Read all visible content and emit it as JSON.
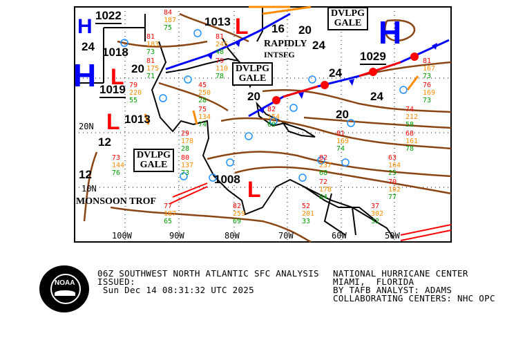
{
  "map": {
    "title": "06Z SOUTHWEST NORTH ATLANTIC SFC ANALYSIS",
    "longitude_labels": [
      "100W",
      "90W",
      "80W",
      "70W",
      "60W",
      "50W"
    ],
    "latitude_labels": [
      "20N",
      "10N"
    ],
    "highs": [
      {
        "symbol": "H",
        "pressure": "1029"
      },
      {
        "symbol": "H",
        "pressure": "1019"
      },
      {
        "symbol": "H",
        "pressure": "1022"
      }
    ],
    "lows": [
      {
        "symbol": "L",
        "pressure": "1018"
      },
      {
        "symbol": "L",
        "pressure": "1013"
      },
      {
        "symbol": "L",
        "pressure": "1013"
      },
      {
        "symbol": "L",
        "pressure": "1008"
      }
    ],
    "isobar_labels": [
      "24",
      "20",
      "12",
      "12",
      "16",
      "20",
      "24",
      "24",
      "20",
      "24",
      "20"
    ],
    "gale_boxes": [
      {
        "line1": "DVLPG",
        "line2": "GALE"
      },
      {
        "line1": "DVLPG",
        "line2": "GALE"
      },
      {
        "line1": "DVLPG",
        "line2": "GALE"
      }
    ],
    "annotations": [
      "RAPIDLY",
      "INTSFG",
      "MONSOON TROF"
    ],
    "station_values": {
      "red": [
        "29",
        "37",
        "45",
        "63",
        "52",
        "81",
        "79",
        "74",
        "82",
        "82",
        "81",
        "81",
        "77",
        "82",
        "80",
        "75",
        "73",
        "70",
        "79",
        "68",
        "72",
        "81",
        "76",
        "81",
        "84"
      ],
      "orange": [
        "178",
        "302",
        "250",
        "164",
        "201",
        "245",
        "220",
        "212",
        "237",
        "259",
        "183",
        "167",
        "187",
        "154",
        "137",
        "134",
        "144",
        "102",
        "110",
        "161",
        "178",
        "175",
        "169",
        "169",
        "187"
      ],
      "green": [
        "28",
        "32",
        "28",
        "25",
        "33",
        "48",
        "55",
        "58",
        "68",
        "69",
        "73",
        "73",
        "65",
        "60",
        "73",
        "74",
        "76",
        "77",
        "78",
        "78",
        "84",
        "71",
        "73",
        "74",
        "75"
      ]
    },
    "colors": {
      "isobar": "#8B4513",
      "high": "#0000FF",
      "low": "#FF0000",
      "cold_front": "#0000FF",
      "warm_front": "#FF0000",
      "trough": "#FF8C00",
      "station": "#1E90FF",
      "temp": "#FF0000",
      "pressure": "#FF8C00",
      "dewpoint": "#00A000"
    }
  },
  "footer": {
    "logo_text": "NOAA",
    "title_line": "06Z SOUTHWEST NORTH ATLANTIC SFC ANALYSIS",
    "issued_label": "ISSUED:",
    "issued_time": " Sun Dec 14 08:31:32 UTC 2025",
    "center": "NATIONAL HURRICANE CENTER",
    "location": "MIAMI,  FLORIDA",
    "analyst": "BY TAFB ANALYST: ADAMS",
    "collaborating": "COLLABORATING CENTERS: NHC OPC"
  }
}
